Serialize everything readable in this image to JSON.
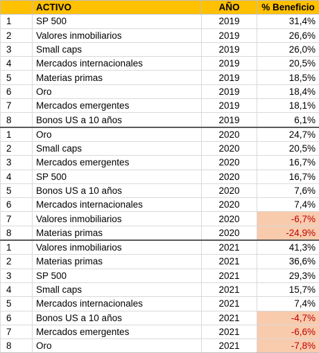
{
  "header": {
    "rank": "",
    "asset": "ACTIVO",
    "year": "AÑO",
    "pct": "% Beneficio"
  },
  "groups": [
    {
      "rows": [
        {
          "rank": "1",
          "asset": "SP 500",
          "year": "2019",
          "pct": "31,4%"
        },
        {
          "rank": "2",
          "asset": "Valores inmobiliarios",
          "year": "2019",
          "pct": "26,6%"
        },
        {
          "rank": "3",
          "asset": "Small caps",
          "year": "2019",
          "pct": "26,0%"
        },
        {
          "rank": "4",
          "asset": "Mercados internacionales",
          "year": "2019",
          "pct": "20,5%"
        },
        {
          "rank": "5",
          "asset": "Materias primas",
          "year": "2019",
          "pct": "18,5%"
        },
        {
          "rank": "6",
          "asset": "Oro",
          "year": "2019",
          "pct": "18,4%"
        },
        {
          "rank": "7",
          "asset": "Mercados emergentes",
          "year": "2019",
          "pct": "18,1%"
        },
        {
          "rank": "8",
          "asset": "Bonos US a 10 años",
          "year": "2019",
          "pct": "6,1%"
        }
      ]
    },
    {
      "rows": [
        {
          "rank": "1",
          "asset": "Oro",
          "year": "2020",
          "pct": "24,7%"
        },
        {
          "rank": "2",
          "asset": "Small caps",
          "year": "2020",
          "pct": "20,5%"
        },
        {
          "rank": "3",
          "asset": "Mercados emergentes",
          "year": "2020",
          "pct": "16,7%"
        },
        {
          "rank": "4",
          "asset": "SP 500",
          "year": "2020",
          "pct": "16,7%"
        },
        {
          "rank": "5",
          "asset": "Bonos US a 10 años",
          "year": "2020",
          "pct": "7,6%"
        },
        {
          "rank": "6",
          "asset": "Mercados internacionales",
          "year": "2020",
          "pct": "7,4%"
        },
        {
          "rank": "7",
          "asset": "Valores inmobiliarios",
          "year": "2020",
          "pct": "-6,7%"
        },
        {
          "rank": "8",
          "asset": "Materias primas",
          "year": "2020",
          "pct": "-24,9%"
        }
      ]
    },
    {
      "rows": [
        {
          "rank": "1",
          "asset": "Valores inmobiliarios",
          "year": "2021",
          "pct": "41,3%"
        },
        {
          "rank": "2",
          "asset": "Materias primas",
          "year": "2021",
          "pct": "36,6%"
        },
        {
          "rank": "3",
          "asset": "SP 500",
          "year": "2021",
          "pct": "29,3%"
        },
        {
          "rank": "4",
          "asset": "Small caps",
          "year": "2021",
          "pct": "15,7%"
        },
        {
          "rank": "5",
          "asset": "Mercados internacionales",
          "year": "2021",
          "pct": "7,4%"
        },
        {
          "rank": "6",
          "asset": "Bonos US a 10 años",
          "year": "2021",
          "pct": "-4,7%"
        },
        {
          "rank": "7",
          "asset": "Mercados emergentes",
          "year": "2021",
          "pct": "-6,6%"
        },
        {
          "rank": "8",
          "asset": "Oro",
          "year": "2021",
          "pct": "-7,8%"
        }
      ]
    }
  ],
  "colors": {
    "header_bg": "#ffc000",
    "negative_bg": "#f8cbad",
    "negative_text": "#c00000"
  }
}
